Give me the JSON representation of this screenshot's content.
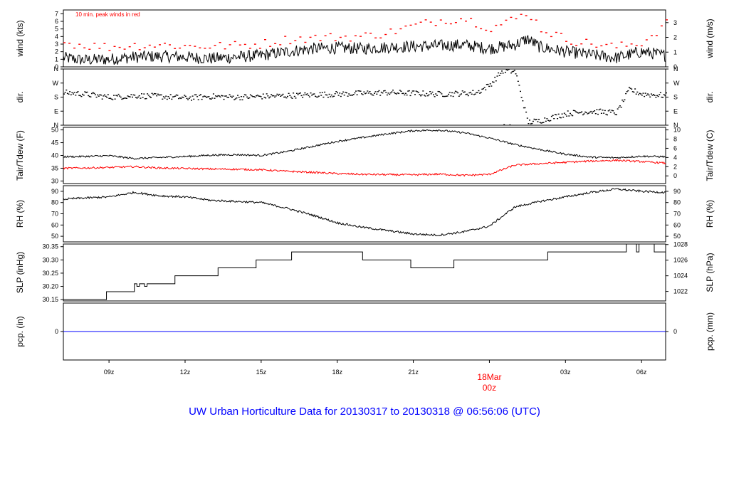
{
  "footer_title": "UW Urban Horticulture Data for 20130317  to  20130318 @ 06:56:06  (UTC)",
  "x_axis": {
    "ticks": [
      "09z",
      "12z",
      "15z",
      "18z",
      "21z",
      "00z",
      "03z",
      "06z"
    ],
    "tick_hours": [
      9,
      12,
      15,
      18,
      21,
      24,
      27,
      30
    ],
    "day_label": "18Mar",
    "day_tick_hour": 24,
    "range_hours": [
      7.2,
      30.95
    ]
  },
  "colors": {
    "primary": "#000000",
    "peak": "#ff0000",
    "dewpoint": "#ff0000",
    "precip": "#0000ff",
    "title": "#0000ff"
  },
  "chart_data": [
    {
      "id": "wind",
      "type": "line",
      "ylabel_left": "wind (kts)",
      "ylabel_right": "wind (m/s)",
      "ylim": [
        0,
        7.5
      ],
      "left_ticks": [
        "0",
        "1",
        "2",
        "3",
        "4",
        "5",
        "6",
        "7"
      ],
      "left_tick_values": [
        0,
        1,
        2,
        3,
        4,
        5,
        6,
        7
      ],
      "right_ticks": [
        "0",
        "1",
        "2",
        "3"
      ],
      "right_tick_values": [
        0,
        1.944,
        3.888,
        5.832
      ],
      "annotation": "10 min. peak winds in red",
      "series": [
        {
          "name": "wind speed",
          "color": "#000000",
          "style": "line",
          "x": [
            7.2,
            8,
            9,
            10,
            11,
            12,
            13,
            14,
            15,
            16,
            17,
            18,
            19,
            20,
            21,
            22,
            23,
            24,
            25,
            25.5,
            26,
            27,
            28,
            29,
            30,
            30.95
          ],
          "y": [
            1.2,
            0.9,
            1.0,
            1.3,
            1.4,
            1.3,
            1.1,
            1.3,
            1.5,
            2.0,
            2.4,
            2.5,
            2.4,
            2.6,
            2.7,
            2.8,
            2.9,
            2.4,
            2.9,
            3.7,
            2.6,
            2.0,
            1.6,
            1.2,
            2.0,
            1.5
          ]
        },
        {
          "name": "10 min. peak winds",
          "color": "#ff0000",
          "style": "dots",
          "x": [
            7.2,
            8,
            9,
            10,
            11,
            12,
            13,
            14,
            15,
            16,
            17,
            18,
            19,
            20,
            21,
            22,
            23,
            24,
            25,
            25.5,
            26,
            27,
            28,
            29,
            30,
            30.95
          ],
          "y": [
            3.0,
            2.6,
            2.4,
            2.6,
            2.7,
            2.5,
            2.5,
            2.6,
            2.8,
            3.4,
            3.6,
            3.7,
            3.8,
            4.3,
            5.2,
            5.9,
            6.2,
            4.9,
            6.1,
            7.0,
            4.8,
            3.4,
            2.8,
            2.4,
            3.0,
            5.5
          ]
        }
      ]
    },
    {
      "id": "dir",
      "type": "scatter",
      "ylabel_left": "dir.",
      "ylabel_right": "dir.",
      "ylim": [
        0,
        360
      ],
      "left_ticks": [
        "N",
        "E",
        "S",
        "W",
        "N"
      ],
      "left_tick_values": [
        0,
        90,
        180,
        270,
        360
      ],
      "right_ticks": [
        "N",
        "E",
        "S",
        "W",
        "N"
      ],
      "right_tick_values": [
        0,
        90,
        180,
        270,
        360
      ],
      "series": [
        {
          "name": "wind direction",
          "color": "#000000",
          "style": "dots",
          "x": [
            7.2,
            8,
            9,
            10,
            11,
            12,
            13,
            14,
            15,
            16,
            17,
            18,
            19,
            20,
            21,
            22,
            23,
            23.5,
            24,
            24.5,
            25,
            25.5,
            26,
            27,
            28,
            28.5,
            29,
            29.5,
            30,
            30.95
          ],
          "y": [
            210,
            200,
            180,
            190,
            185,
            175,
            185,
            180,
            185,
            190,
            195,
            200,
            205,
            210,
            205,
            200,
            205,
            210,
            260,
            350,
            345,
            20,
            30,
            75,
            90,
            85,
            80,
            230,
            200,
            190
          ]
        }
      ]
    },
    {
      "id": "temp",
      "type": "line",
      "ylabel_left": "Tair/Tdew (F)",
      "ylabel_right": "Tair/Tdew (C)",
      "ylim": [
        29,
        51
      ],
      "left_ticks": [
        "30",
        "35",
        "40",
        "45",
        "50"
      ],
      "left_tick_values": [
        30,
        35,
        40,
        45,
        50
      ],
      "right_ticks": [
        "0",
        "2",
        "4",
        "6",
        "8",
        "10"
      ],
      "right_tick_values": [
        32,
        35.6,
        39.2,
        42.8,
        46.4,
        50
      ],
      "series": [
        {
          "name": "Tair",
          "color": "#000000",
          "style": "line",
          "x": [
            7.2,
            8,
            9,
            10,
            11,
            12,
            13,
            14,
            15,
            16,
            17,
            18,
            19,
            20,
            21,
            22,
            23,
            24,
            25,
            26,
            27,
            28,
            29,
            30,
            30.95
          ],
          "y": [
            39.5,
            39.6,
            39.9,
            38.8,
            39.2,
            39.6,
            40.1,
            40.3,
            40.0,
            41.5,
            43.5,
            45.5,
            47.0,
            48.5,
            49.7,
            49.9,
            48.9,
            46.8,
            44.3,
            42.3,
            40.5,
            39.3,
            39.1,
            39.7,
            39.5
          ]
        },
        {
          "name": "Tdew",
          "color": "#ff0000",
          "style": "line",
          "x": [
            7.2,
            8,
            9,
            10,
            11,
            12,
            13,
            14,
            15,
            16,
            17,
            18,
            19,
            20,
            21,
            22,
            23,
            24,
            25,
            26,
            27,
            28,
            29,
            30,
            30.95
          ],
          "y": [
            35.0,
            35.1,
            35.3,
            35.6,
            35.1,
            34.9,
            34.7,
            34.6,
            34.4,
            33.8,
            33.4,
            32.9,
            32.6,
            32.5,
            32.4,
            32.7,
            32.2,
            32.6,
            36.2,
            36.8,
            37.3,
            37.8,
            38.1,
            37.6,
            37.0
          ]
        }
      ]
    },
    {
      "id": "rh",
      "type": "line",
      "ylabel_left": "RH (%)",
      "ylabel_right": "RH (%)",
      "ylim": [
        45,
        95
      ],
      "left_ticks": [
        "50",
        "60",
        "70",
        "80",
        "90"
      ],
      "left_tick_values": [
        50,
        60,
        70,
        80,
        90
      ],
      "right_ticks": [
        "50",
        "60",
        "70",
        "80",
        "90"
      ],
      "right_tick_values": [
        50,
        60,
        70,
        80,
        90
      ],
      "series": [
        {
          "name": "relative humidity",
          "color": "#000000",
          "style": "line",
          "x": [
            7.2,
            8,
            9,
            10,
            11,
            12,
            13,
            14,
            15,
            16,
            17,
            18,
            19,
            20,
            21,
            22,
            23,
            24,
            25,
            26,
            27,
            28,
            29,
            30,
            30.95
          ],
          "y": [
            83,
            84,
            85,
            89,
            86,
            85,
            82,
            81,
            80,
            75,
            69,
            62,
            58,
            55,
            52,
            51,
            54,
            59,
            76,
            81,
            85,
            89,
            92,
            90,
            89
          ]
        }
      ]
    },
    {
      "id": "slp",
      "type": "line",
      "ylabel_left": "SLP (inHg)",
      "ylabel_right": "SLP (hPa)",
      "ylim": [
        30.145,
        30.36
      ],
      "left_ticks": [
        "30.15",
        "30.20",
        "30.25",
        "30.30",
        "30.35"
      ],
      "left_tick_values": [
        30.15,
        30.2,
        30.25,
        30.3,
        30.35
      ],
      "right_ticks": [
        "1022",
        "1024",
        "1026",
        "1028"
      ],
      "right_tick_values": [
        30.181,
        30.24,
        30.299,
        30.358
      ],
      "series": [
        {
          "name": "sea level pressure",
          "color": "#000000",
          "style": "step",
          "x": [
            7.2,
            8.9,
            10.0,
            10.1,
            10.2,
            10.4,
            10.5,
            11.6,
            13.3,
            14.8,
            16.2,
            19.0,
            20.9,
            22.6,
            24.0,
            26.3,
            29.4,
            29.8,
            29.9,
            30.5
          ],
          "y": [
            30.15,
            30.18,
            30.21,
            30.2,
            30.21,
            30.2,
            30.21,
            30.24,
            30.27,
            30.3,
            30.33,
            30.3,
            30.27,
            30.3,
            30.3,
            30.33,
            30.36,
            30.33,
            30.36,
            30.33
          ]
        }
      ]
    },
    {
      "id": "pcp",
      "type": "line",
      "ylabel_left": "pcp. (in)",
      "ylabel_right": "pcp. (mm)",
      "ylim": [
        -1,
        1
      ],
      "left_ticks": [
        "0"
      ],
      "left_tick_values": [
        0
      ],
      "right_ticks": [
        "0"
      ],
      "right_tick_values": [
        0
      ],
      "series": [
        {
          "name": "precipitation",
          "color": "#0000ff",
          "style": "line",
          "x": [
            7.2,
            30.95
          ],
          "y": [
            0,
            0
          ]
        }
      ]
    }
  ]
}
